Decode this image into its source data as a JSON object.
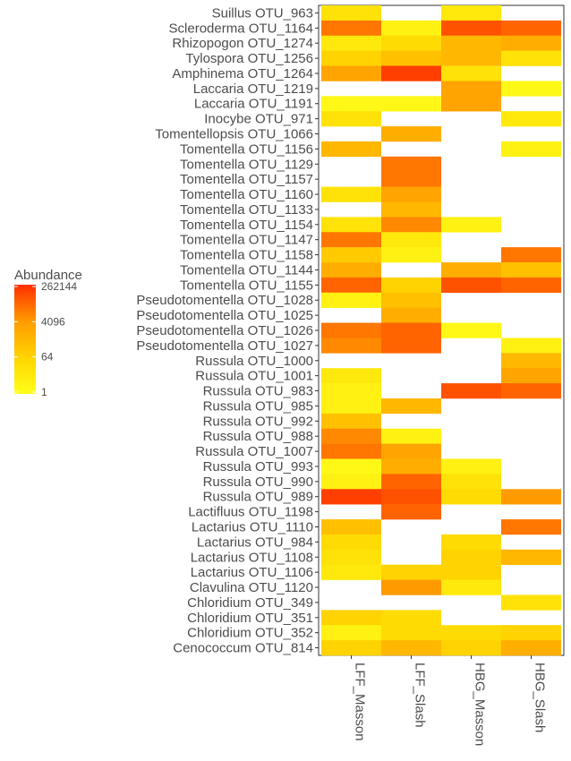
{
  "chart_data": {
    "type": "heatmap",
    "legend": {
      "title": "Abundance",
      "ticks": [
        "262144",
        "4096",
        "64",
        "1"
      ],
      "tick_values": [
        262144,
        4096,
        64,
        1
      ],
      "scale": "log",
      "colors": [
        "#ffff1a",
        "#ff2d00"
      ]
    },
    "columns": [
      "LFF_Masson",
      "LFF_Slash",
      "HBG_Masson",
      "HBG_Slash"
    ],
    "rows": [
      "Suillus OTU_963",
      "Scleroderma OTU_1164",
      "Rhizopogon OTU_1274",
      "Tylospora OTU_1256",
      "Amphinema OTU_1264",
      "Laccaria OTU_1219",
      "Laccaria OTU_1191",
      "Inocybe OTU_971",
      "Tomentellopsis OTU_1066",
      "Tomentella OTU_1156",
      "Tomentella OTU_1129",
      "Tomentella OTU_1157",
      "Tomentella OTU_1160",
      "Tomentella OTU_1133",
      "Tomentella OTU_1154",
      "Tomentella OTU_1147",
      "Tomentella OTU_1158",
      "Tomentella OTU_1144",
      "Tomentella OTU_1155",
      "Pseudotomentella OTU_1028",
      "Pseudotomentella OTU_1025",
      "Pseudotomentella OTU_1026",
      "Pseudotomentella OTU_1027",
      "Russula OTU_1000",
      "Russula OTU_1001",
      "Russula OTU_983",
      "Russula OTU_985",
      "Russula OTU_992",
      "Russula OTU_988",
      "Russula OTU_1007",
      "Russula OTU_993",
      "Russula OTU_990",
      "Russula OTU_989",
      "Lactifluus OTU_1198",
      "Lactarius OTU_1110",
      "Lactarius OTU_984",
      "Lactarius OTU_1108",
      "Lactarius OTU_1106",
      "Clavulina OTU_1120",
      "Chloridium OTU_349",
      "Chloridium OTU_351",
      "Chloridium OTU_352",
      "Cenococcum OTU_814"
    ],
    "values": [
      [
        16,
        null,
        8,
        null
      ],
      [
        16384,
        4,
        65536,
        32768
      ],
      [
        8,
        32,
        512,
        1024
      ],
      [
        64,
        256,
        512,
        16
      ],
      [
        2048,
        131072,
        16,
        null
      ],
      [
        null,
        null,
        2048,
        2
      ],
      [
        2,
        2,
        2048,
        null
      ],
      [
        16,
        null,
        null,
        8
      ],
      [
        null,
        1024,
        null,
        null
      ],
      [
        512,
        null,
        null,
        4
      ],
      [
        null,
        16384,
        null,
        null
      ],
      [
        null,
        16384,
        null,
        null
      ],
      [
        16,
        2048,
        null,
        null
      ],
      [
        null,
        512,
        null,
        null
      ],
      [
        16,
        8192,
        4,
        null
      ],
      [
        16384,
        8,
        null,
        null
      ],
      [
        128,
        4,
        null,
        16384
      ],
      [
        1024,
        null,
        1024,
        256
      ],
      [
        32768,
        64,
        65536,
        32768
      ],
      [
        4,
        256,
        null,
        null
      ],
      [
        null,
        1024,
        null,
        null
      ],
      [
        16384,
        32768,
        2,
        null
      ],
      [
        8192,
        32768,
        null,
        4
      ],
      [
        null,
        null,
        null,
        512
      ],
      [
        8,
        null,
        null,
        2048
      ],
      [
        4,
        null,
        65536,
        32768
      ],
      [
        4,
        512,
        null,
        null
      ],
      [
        256,
        null,
        null,
        null
      ],
      [
        8192,
        4,
        null,
        null
      ],
      [
        16384,
        2048,
        null,
        null
      ],
      [
        2,
        1024,
        4,
        null
      ],
      [
        4,
        32768,
        16,
        null
      ],
      [
        131072,
        65536,
        32,
        4096
      ],
      [
        null,
        32768,
        null,
        null
      ],
      [
        256,
        null,
        null,
        16384
      ],
      [
        32,
        null,
        32,
        null
      ],
      [
        16,
        null,
        64,
        512
      ],
      [
        8,
        64,
        64,
        null
      ],
      [
        null,
        4096,
        8,
        null
      ],
      [
        null,
        null,
        null,
        16
      ],
      [
        64,
        32,
        null,
        null
      ],
      [
        4,
        32,
        32,
        64
      ],
      [
        64,
        512,
        64,
        1024
      ]
    ],
    "value_unit": "abundance (log scale)"
  }
}
